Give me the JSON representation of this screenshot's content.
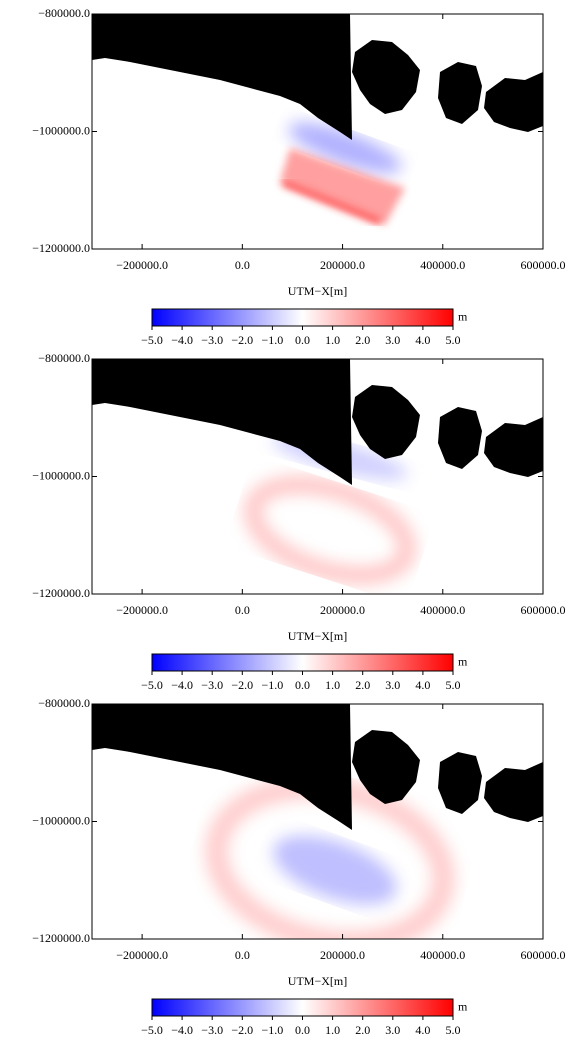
{
  "chart_data": [
    {
      "type": "map",
      "xlabel": "UTM−X[m]",
      "xlim": [
        -300000,
        600000
      ],
      "ylim": [
        -1200000,
        -800000
      ],
      "xticks": [
        {
          "value": -200000,
          "label": "−200000.0"
        },
        {
          "value": 0,
          "label": "0.0"
        },
        {
          "value": 200000,
          "label": "200000.0"
        },
        {
          "value": 400000,
          "label": "400000.0"
        },
        {
          "value": 600000,
          "label": "600000.0"
        }
      ],
      "yticks": [
        {
          "value": -1200000,
          "label": "−1200000.0"
        },
        {
          "value": -1000000,
          "label": "−1000000.0"
        },
        {
          "value": -800000,
          "label": "−800000.0"
        }
      ],
      "colorbar": {
        "label": "m",
        "lim": [
          -5,
          5
        ],
        "colors": [
          "#0000ff",
          "#ffffff",
          "#ff0000"
        ],
        "ticks": [
          {
            "value": -5,
            "label": "−5.0"
          },
          {
            "value": -4,
            "label": "−4.0"
          },
          {
            "value": -3,
            "label": "−3.0"
          },
          {
            "value": -2,
            "label": "−2.0"
          },
          {
            "value": -1,
            "label": "−1.0"
          },
          {
            "value": 0,
            "label": "0.0"
          },
          {
            "value": 1,
            "label": "1.0"
          },
          {
            "value": 2,
            "label": "2.0"
          },
          {
            "value": 3,
            "label": "3.0"
          },
          {
            "value": 4,
            "label": "4.0"
          },
          {
            "value": 5,
            "label": "5.0"
          }
        ]
      }
    },
    {
      "type": "map",
      "xlabel": "UTM−X[m]",
      "xlim": [
        -300000,
        600000
      ],
      "ylim": [
        -1200000,
        -800000
      ],
      "xticks": [
        {
          "value": -200000,
          "label": "−200000.0"
        },
        {
          "value": 0,
          "label": "0.0"
        },
        {
          "value": 200000,
          "label": "200000.0"
        },
        {
          "value": 400000,
          "label": "400000.0"
        },
        {
          "value": 600000,
          "label": "600000.0"
        }
      ],
      "yticks": [
        {
          "value": -1200000,
          "label": "−1200000.0"
        },
        {
          "value": -1000000,
          "label": "−1000000.0"
        },
        {
          "value": -800000,
          "label": "−800000.0"
        }
      ],
      "colorbar": {
        "label": "m",
        "lim": [
          -5,
          5
        ],
        "colors": [
          "#0000ff",
          "#ffffff",
          "#ff0000"
        ],
        "ticks": [
          {
            "value": -5,
            "label": "−5.0"
          },
          {
            "value": -4,
            "label": "−4.0"
          },
          {
            "value": -3,
            "label": "−3.0"
          },
          {
            "value": -2,
            "label": "−2.0"
          },
          {
            "value": -1,
            "label": "−1.0"
          },
          {
            "value": 0,
            "label": "0.0"
          },
          {
            "value": 1,
            "label": "1.0"
          },
          {
            "value": 2,
            "label": "2.0"
          },
          {
            "value": 3,
            "label": "3.0"
          },
          {
            "value": 4,
            "label": "4.0"
          },
          {
            "value": 5,
            "label": "5.0"
          }
        ]
      }
    },
    {
      "type": "map",
      "xlabel": "UTM−X[m]",
      "xlim": [
        -300000,
        600000
      ],
      "ylim": [
        -1200000,
        -800000
      ],
      "xticks": [
        {
          "value": -200000,
          "label": "−200000.0"
        },
        {
          "value": 0,
          "label": "0.0"
        },
        {
          "value": 200000,
          "label": "200000.0"
        },
        {
          "value": 400000,
          "label": "400000.0"
        },
        {
          "value": 600000,
          "label": "600000.0"
        }
      ],
      "yticks": [
        {
          "value": -1200000,
          "label": "−1200000.0"
        },
        {
          "value": -1000000,
          "label": "−1000000.0"
        },
        {
          "value": -800000,
          "label": "−800000.0"
        }
      ],
      "colorbar": {
        "label": "m",
        "lim": [
          -5,
          5
        ],
        "colors": [
          "#0000ff",
          "#ffffff",
          "#ff0000"
        ],
        "ticks": [
          {
            "value": -5,
            "label": "−5.0"
          },
          {
            "value": -4,
            "label": "−4.0"
          },
          {
            "value": -3,
            "label": "−3.0"
          },
          {
            "value": -2,
            "label": "−2.0"
          },
          {
            "value": -1,
            "label": "−1.0"
          },
          {
            "value": 0,
            "label": "0.0"
          },
          {
            "value": 1,
            "label": "1.0"
          },
          {
            "value": 2,
            "label": "2.0"
          },
          {
            "value": 3,
            "label": "3.0"
          },
          {
            "value": 4,
            "label": "4.0"
          },
          {
            "value": 5,
            "label": "5.0"
          }
        ]
      }
    }
  ]
}
